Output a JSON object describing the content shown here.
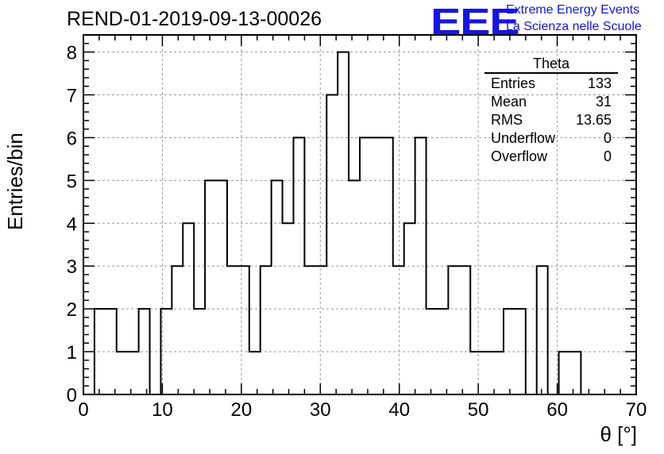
{
  "header": {
    "title": "REND-01-2019-09-13-00026",
    "logo_text": "EEE",
    "logo_line1": "Extreme Energy Events",
    "logo_line2": "La Scienza nelle Scuole"
  },
  "stats": {
    "title": "Theta",
    "rows": [
      {
        "label": "Entries",
        "value": "133"
      },
      {
        "label": "Mean",
        "value": "31"
      },
      {
        "label": "RMS",
        "value": "13.65"
      },
      {
        "label": "Underflow",
        "value": "0"
      },
      {
        "label": "Overflow",
        "value": "0"
      }
    ]
  },
  "colors": {
    "line": "#000000",
    "grid": "#999999",
    "logo": "#1515e6"
  },
  "chart_data": {
    "type": "bar",
    "bin_width": 1.4,
    "x_start": 1.4,
    "values": [
      2,
      2,
      1,
      1,
      2,
      0,
      2,
      3,
      4,
      2,
      5,
      5,
      3,
      3,
      1,
      3,
      5,
      4,
      6,
      3,
      3,
      7,
      8,
      5,
      6,
      6,
      6,
      3,
      4,
      6,
      2,
      2,
      3,
      3,
      1,
      1,
      1,
      2,
      2,
      0,
      3,
      0,
      1,
      1
    ],
    "xlabel": "θ [°]",
    "ylabel": "Entries/bin",
    "xlim": [
      0,
      70
    ],
    "ylim": [
      0,
      8.4
    ],
    "xticks": [
      0,
      10,
      20,
      30,
      40,
      50,
      60,
      70
    ],
    "yticks": [
      0,
      1,
      2,
      3,
      4,
      5,
      6,
      7,
      8
    ],
    "grid": true
  }
}
